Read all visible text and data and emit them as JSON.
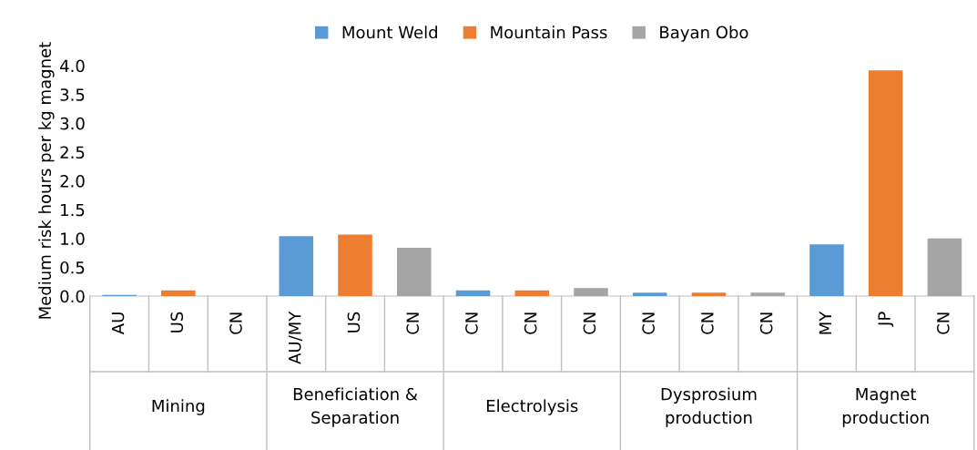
{
  "chart_data": {
    "type": "bar",
    "ylabel": "Medium risk hours per kg magnet",
    "categories": [
      "AU",
      "US",
      "CN",
      "AU/MY",
      "US",
      "CN",
      "CN",
      "CN",
      "CN",
      "CN",
      "CN",
      "CN",
      "MY",
      "JP",
      "CN"
    ],
    "series": [
      {
        "name": "Mount Weld",
        "color": "#5b9bd5",
        "values": [
          0.02,
          null,
          null,
          1.04,
          null,
          null,
          0.1,
          null,
          null,
          0.06,
          null,
          null,
          0.9,
          null,
          null
        ]
      },
      {
        "name": "Mountain Pass",
        "color": "#ed7d31",
        "values": [
          null,
          0.1,
          null,
          null,
          1.07,
          null,
          null,
          0.1,
          null,
          null,
          0.06,
          null,
          null,
          3.92,
          null
        ]
      },
      {
        "name": "Bayan Obo",
        "color": "#a5a5a5",
        "values": [
          null,
          null,
          0.0,
          null,
          null,
          0.84,
          null,
          null,
          0.14,
          null,
          null,
          0.06,
          null,
          null,
          1.0
        ]
      }
    ],
    "annotations": [
      "Mining",
      "Beneficiation &\nSeparation",
      "Electrolysis",
      "Dysprosium\nproduction",
      "Magnet\nproduction"
    ],
    "ylim": [
      0,
      4.0
    ],
    "yticks": [
      {
        "value": 0,
        "label": "0.0"
      },
      {
        "value": 0.5,
        "label": "0.5"
      },
      {
        "value": 1.0,
        "label": "1.0"
      },
      {
        "value": 1.5,
        "label": "1.5"
      },
      {
        "value": 2.0,
        "label": "2.0"
      },
      {
        "value": 2.5,
        "label": "2.5"
      },
      {
        "value": 3.0,
        "label": "3.0"
      },
      {
        "value": 3.5,
        "label": "3.5"
      },
      {
        "value": 4.0,
        "label": "4.0"
      }
    ],
    "legend": "top",
    "grid": false
  }
}
